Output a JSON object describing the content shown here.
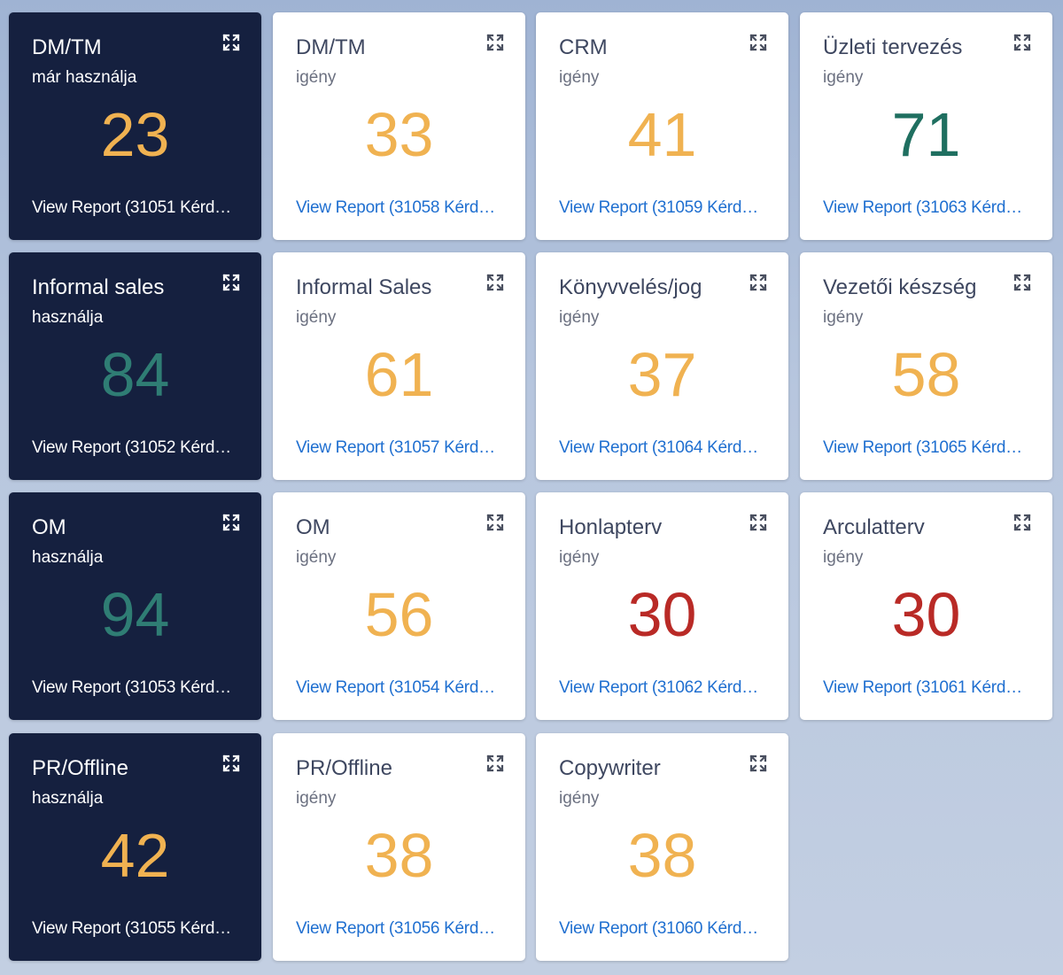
{
  "colors": {
    "dark_card": "#15203f",
    "link_blue": "#1f6fd0",
    "orange": "#f0b251",
    "green": "#2f7d74",
    "red": "#b92a26"
  },
  "cards": [
    {
      "theme": "dark",
      "title": "DM/TM",
      "subtitle": "már használja",
      "value": "23",
      "value_color": "orange",
      "link": "View Report (31051 Kérd…",
      "icon": "expand-icon"
    },
    {
      "theme": "light",
      "title": "DM/TM",
      "subtitle": "igény",
      "value": "33",
      "value_color": "orange",
      "link": "View Report (31058 Kérd…",
      "icon": "expand-icon"
    },
    {
      "theme": "light",
      "title": "CRM",
      "subtitle": "igény",
      "value": "41",
      "value_color": "orange",
      "link": "View Report (31059 Kérd…",
      "icon": "expand-icon"
    },
    {
      "theme": "light",
      "title": "Üzleti tervezés",
      "subtitle": "igény",
      "value": "71",
      "value_color": "darkgreen",
      "link": "View Report (31063 Kérd…",
      "icon": "expand-icon"
    },
    {
      "theme": "dark",
      "title": "Informal sales",
      "subtitle": "használja",
      "value": "84",
      "value_color": "green",
      "link": "View Report (31052 Kérd…",
      "icon": "expand-icon"
    },
    {
      "theme": "light",
      "title": "Informal Sales",
      "subtitle": "igény",
      "value": "61",
      "value_color": "orange",
      "link": "View Report (31057 Kérd…",
      "icon": "expand-icon"
    },
    {
      "theme": "light",
      "title": "Könyvvelés/jog",
      "subtitle": "igény",
      "value": "37",
      "value_color": "orange",
      "link": "View Report (31064 Kérd…",
      "icon": "expand-icon"
    },
    {
      "theme": "light",
      "title": "Vezetői készség",
      "subtitle": "igény",
      "value": "58",
      "value_color": "orange",
      "link": "View Report (31065 Kérd…",
      "icon": "expand-icon"
    },
    {
      "theme": "dark",
      "title": "OM",
      "subtitle": "használja",
      "value": "94",
      "value_color": "green",
      "link": "View Report (31053 Kérd…",
      "icon": "expand-icon"
    },
    {
      "theme": "light",
      "title": "OM",
      "subtitle": "igény",
      "value": "56",
      "value_color": "orange",
      "link": "View Report (31054 Kérd…",
      "icon": "expand-icon"
    },
    {
      "theme": "light",
      "title": "Honlapterv",
      "subtitle": "igény",
      "value": "30",
      "value_color": "red",
      "link": "View Report (31062 Kérd…",
      "icon": "expand-icon"
    },
    {
      "theme": "light",
      "title": "Arculatterv",
      "subtitle": "igény",
      "value": "30",
      "value_color": "red",
      "link": "View Report (31061 Kérd…",
      "icon": "expand-icon"
    },
    {
      "theme": "dark",
      "title": "PR/Offline",
      "subtitle": "használja",
      "value": "42",
      "value_color": "orange",
      "link": "View Report (31055 Kérd…",
      "icon": "expand-icon"
    },
    {
      "theme": "light",
      "title": "PR/Offline",
      "subtitle": "igény",
      "value": "38",
      "value_color": "orange",
      "link": "View Report (31056 Kérd…",
      "icon": "expand-icon"
    },
    {
      "theme": "light",
      "title": "Copywriter",
      "subtitle": "igény",
      "value": "38",
      "value_color": "orange",
      "link": "View Report (31060 Kérd…",
      "icon": "expand-icon"
    }
  ]
}
